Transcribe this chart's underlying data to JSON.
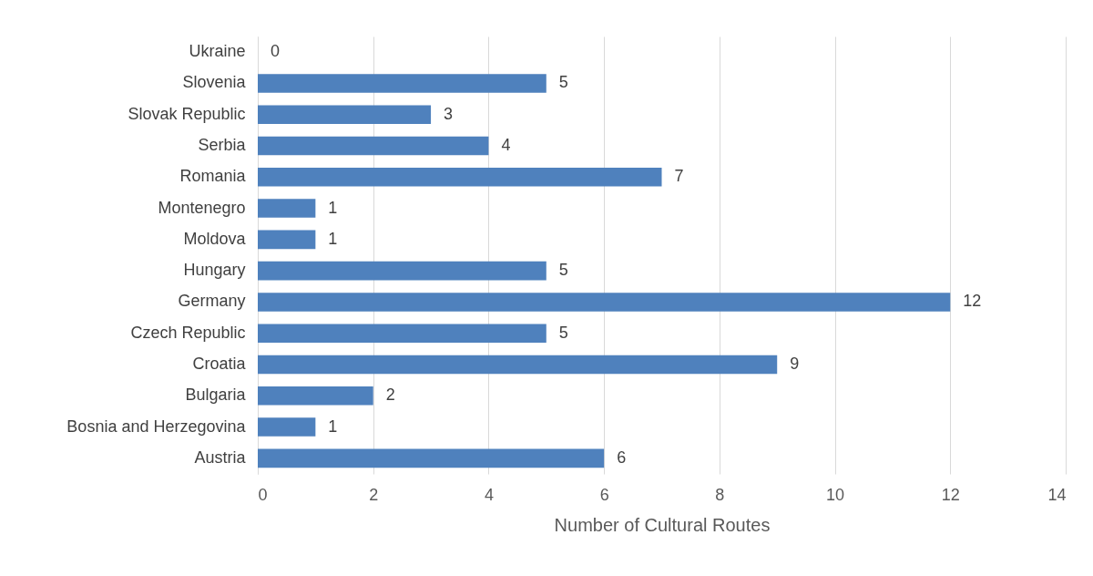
{
  "chart_data": {
    "type": "bar",
    "orientation": "horizontal",
    "categories": [
      "Ukraine",
      "Slovenia",
      "Slovak Republic",
      "Serbia",
      "Romania",
      "Montenegro",
      "Moldova",
      "Hungary",
      "Germany",
      "Czech Republic",
      "Croatia",
      "Bulgaria",
      "Bosnia and Herzegovina",
      "Austria"
    ],
    "values": [
      0,
      5,
      3,
      4,
      7,
      1,
      1,
      5,
      12,
      5,
      9,
      2,
      1,
      6
    ],
    "color": "#4f81bd",
    "xlim": [
      0,
      14
    ],
    "xticks": [
      0,
      2,
      4,
      6,
      8,
      10,
      12,
      14
    ],
    "xlabel": "Number of Cultural Routes",
    "grid": "x",
    "data_labels": true
  }
}
